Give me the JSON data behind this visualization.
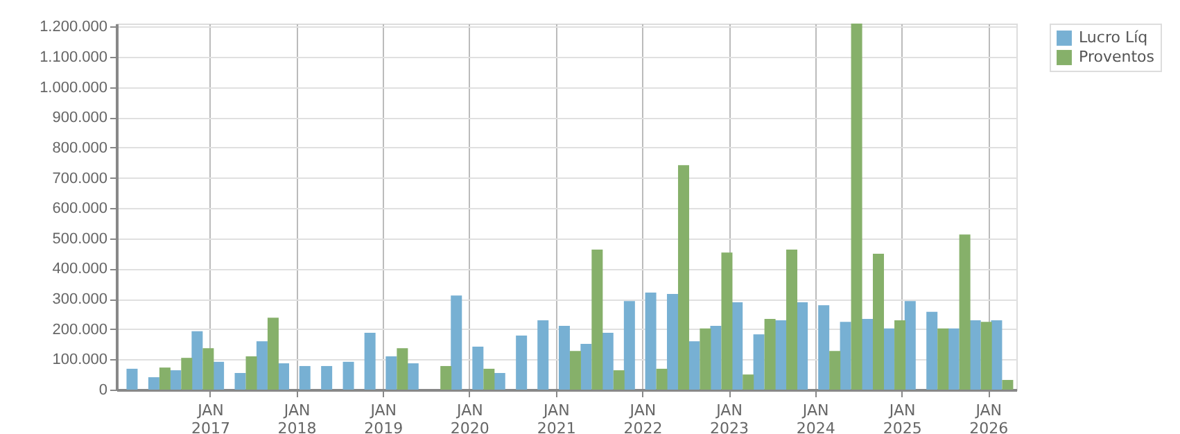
{
  "chart_data": {
    "type": "bar",
    "x": [
      "2016-03",
      "2016-06",
      "2016-09",
      "2016-12",
      "2017-03",
      "2017-06",
      "2017-09",
      "2017-12",
      "2018-03",
      "2018-06",
      "2018-09",
      "2018-12",
      "2019-03",
      "2019-06",
      "2019-09",
      "2019-12",
      "2020-03",
      "2020-06",
      "2020-09",
      "2020-12",
      "2021-03",
      "2021-06",
      "2021-09",
      "2021-12",
      "2022-03",
      "2022-06",
      "2022-09",
      "2022-12",
      "2023-03",
      "2023-06",
      "2023-09",
      "2023-12",
      "2024-03",
      "2024-06",
      "2024-09",
      "2024-12",
      "2025-03",
      "2025-06",
      "2025-09",
      "2025-12",
      "2026-03"
    ],
    "series": [
      {
        "name": "Lucro Líq",
        "color": "#77b0d3",
        "values": [
          69000,
          41000,
          64000,
          193000,
          92000,
          55000,
          160000,
          87000,
          78000,
          78000,
          92000,
          188000,
          110000,
          87000,
          null,
          311000,
          142000,
          55000,
          179000,
          229000,
          211000,
          151000,
          188000,
          293000,
          321000,
          316000,
          160000,
          211000,
          289000,
          183000,
          229000,
          289000,
          279000,
          224000,
          234000,
          202000,
          293000,
          257000,
          202000,
          229000,
          229000
        ]
      },
      {
        "name": "Proventos",
        "color": "#86b06a",
        "values": [
          null,
          73000,
          105000,
          137000,
          null,
          110000,
          238000,
          null,
          null,
          null,
          null,
          null,
          137000,
          null,
          78000,
          null,
          69000,
          null,
          null,
          null,
          128000,
          463000,
          64000,
          null,
          69000,
          742000,
          202000,
          453000,
          50000,
          234000,
          463000,
          null,
          128000,
          1210000,
          449000,
          229000,
          null,
          202000,
          513000,
          224000,
          32000
        ]
      }
    ],
    "xlim": [
      "2016-01",
      "2026-04"
    ],
    "xticks": [
      {
        "value": "2017-01",
        "label": "JAN 2017"
      },
      {
        "value": "2018-01",
        "label": "JAN 2018"
      },
      {
        "value": "2019-01",
        "label": "JAN 2019"
      },
      {
        "value": "2020-01",
        "label": "JAN 2020"
      },
      {
        "value": "2021-01",
        "label": "JAN 2021"
      },
      {
        "value": "2022-01",
        "label": "JAN 2022"
      },
      {
        "value": "2023-01",
        "label": "JAN 2023"
      },
      {
        "value": "2024-01",
        "label": "JAN 2024"
      },
      {
        "value": "2025-01",
        "label": "JAN 2025"
      },
      {
        "value": "2026-01",
        "label": "JAN 2026"
      }
    ],
    "ylim": [
      0,
      1210000
    ],
    "yticks": [
      0,
      {
        "value": 100000,
        "label": "100.000"
      },
      {
        "value": 200000,
        "label": "200.000"
      },
      {
        "value": 300000,
        "label": "300.000"
      },
      {
        "value": 400000,
        "label": "400.000"
      },
      {
        "value": 500000,
        "label": "500.000"
      },
      {
        "value": 600000,
        "label": "600.000"
      },
      {
        "value": 700000,
        "label": "700.000"
      },
      {
        "value": 800000,
        "label": "800.000"
      },
      {
        "value": 900000,
        "label": "900.000"
      },
      {
        "value": 1000000,
        "label": "1.000.000"
      },
      {
        "value": 1100000,
        "label": "1.100.000"
      },
      {
        "value": 1200000,
        "label": "1.200.000"
      }
    ],
    "grid": true,
    "legend": "top right"
  }
}
